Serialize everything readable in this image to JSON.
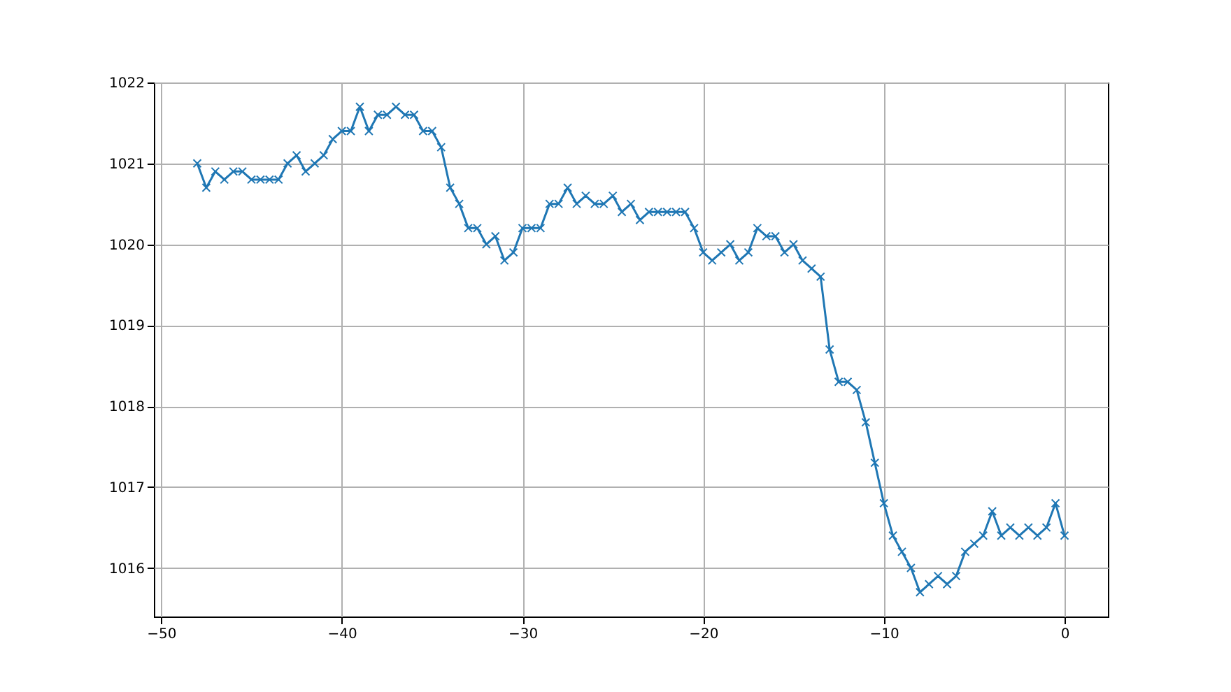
{
  "chart_data": {
    "type": "line",
    "marker": "cross",
    "grid": true,
    "xlim": [
      -50.4,
      2.4
    ],
    "ylim": [
      1015.4,
      1022
    ],
    "xticks": [
      -50,
      -40,
      -30,
      -20,
      -10,
      0
    ],
    "yticks": [
      1016,
      1017,
      1018,
      1019,
      1020,
      1021,
      1022
    ],
    "x": [
      -48,
      -47.5,
      -47,
      -46.5,
      -46,
      -45.5,
      -45,
      -44.5,
      -44,
      -43.5,
      -43,
      -42.5,
      -42,
      -41.5,
      -41,
      -40.5,
      -40,
      -39.5,
      -39,
      -38.5,
      -38,
      -37.5,
      -37,
      -36.5,
      -36,
      -35.5,
      -35,
      -34.5,
      -34,
      -33.5,
      -33,
      -32.5,
      -32,
      -31.5,
      -31,
      -30.5,
      -30,
      -29.5,
      -29,
      -28.5,
      -28,
      -27.5,
      -27,
      -26.5,
      -26,
      -25.5,
      -25,
      -24.5,
      -24,
      -23.5,
      -23,
      -22.5,
      -22,
      -21.5,
      -21,
      -20.5,
      -20,
      -19.5,
      -19,
      -18.5,
      -18,
      -17.5,
      -17,
      -16.5,
      -16,
      -15.5,
      -15,
      -14.5,
      -14,
      -13.5,
      -13,
      -12.5,
      -12,
      -11.5,
      -11,
      -10.5,
      -10,
      -9.5,
      -9,
      -8.5,
      -8,
      -7.5,
      -7,
      -6.5,
      -6,
      -5.5,
      -5,
      -4.5,
      -4,
      -3.5,
      -3,
      -2.5,
      -2,
      -1.5,
      -1,
      -0.5,
      0
    ],
    "series": [
      {
        "color": "#1f77b4",
        "values": [
          1021.0,
          1020.7,
          1020.9,
          1020.8,
          1020.9,
          1020.9,
          1020.8,
          1020.8,
          1020.8,
          1020.8,
          1021.0,
          1021.1,
          1020.9,
          1021.0,
          1021.1,
          1021.3,
          1021.4,
          1021.4,
          1021.7,
          1021.4,
          1021.6,
          1021.6,
          1021.7,
          1021.6,
          1021.6,
          1021.4,
          1021.4,
          1021.2,
          1020.7,
          1020.5,
          1020.2,
          1020.2,
          1020.0,
          1020.1,
          1019.8,
          1019.9,
          1020.2,
          1020.2,
          1020.2,
          1020.5,
          1020.5,
          1020.7,
          1020.5,
          1020.6,
          1020.5,
          1020.5,
          1020.6,
          1020.4,
          1020.5,
          1020.3,
          1020.4,
          1020.4,
          1020.4,
          1020.4,
          1020.4,
          1020.2,
          1019.9,
          1019.8,
          1019.9,
          1020.0,
          1019.8,
          1019.9,
          1020.2,
          1020.1,
          1020.1,
          1019.9,
          1020.0,
          1019.8,
          1019.7,
          1019.6,
          1018.7,
          1018.3,
          1018.3,
          1018.2,
          1017.8,
          1017.3,
          1016.8,
          1016.4,
          1016.2,
          1016.0,
          1015.7,
          1015.8,
          1015.9,
          1015.8,
          1015.9,
          1016.2,
          1016.3,
          1016.4,
          1016.7,
          1016.4,
          1016.5,
          1016.4,
          1016.5,
          1016.4,
          1016.5,
          1016.8,
          1016.4
        ]
      }
    ]
  }
}
